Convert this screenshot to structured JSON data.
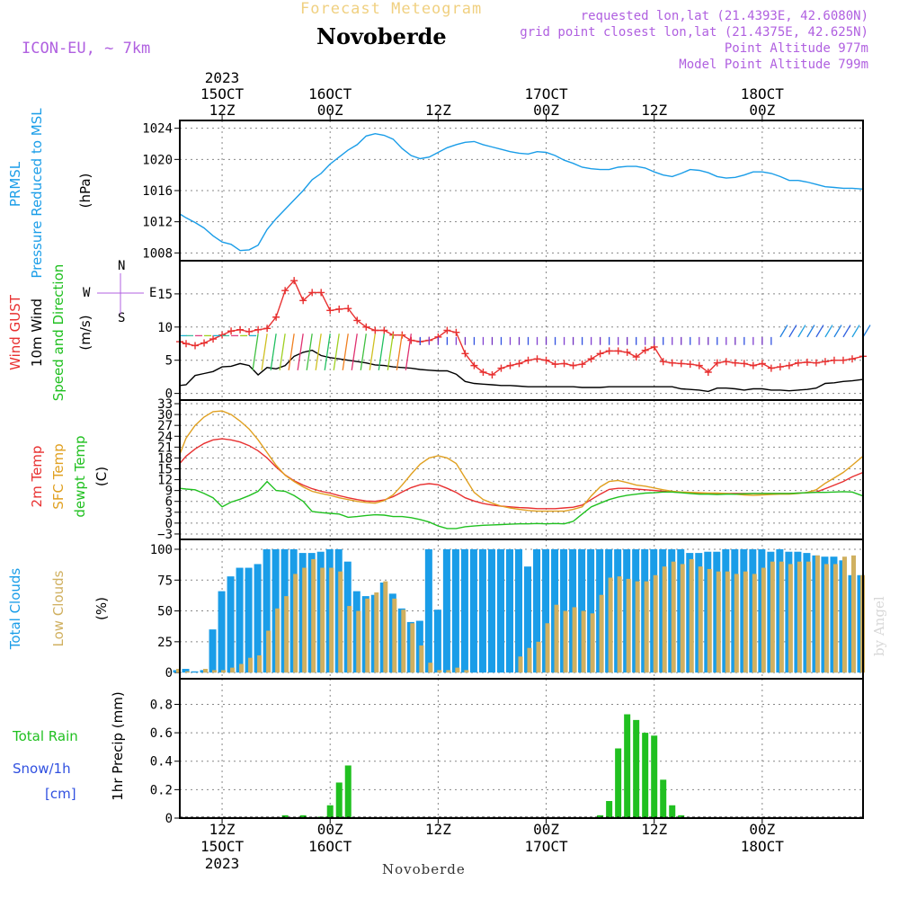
{
  "header": {
    "title": "Forecast Meteogram",
    "station": "Novoberde",
    "model": "ICON-EU, ~ 7km",
    "requested": "requested lon,lat (21.4393E, 42.6080N)",
    "grid_point": "grid point closest lon,lat (21.4375E, 42.625N)",
    "point_altitude": "Point Altitude 977m",
    "model_altitude": "Model Point Altitude 799m"
  },
  "footer": {
    "station": "Novoberde",
    "watermark": "by Angel"
  },
  "colors": {
    "pressure": "#1a9de8",
    "gust": "#e83030",
    "wind": "#000000",
    "temp2m": "#e83030",
    "sfc_temp": "#e0a020",
    "dewpoint": "#20c020",
    "total_clouds": "#1a9de8",
    "low_clouds": "#d0b060",
    "rain": "#20c020",
    "snow": "#3050e0"
  },
  "time_axis": {
    "top": [
      {
        "x": 10,
        "lines": [
          "2023",
          "15OCT",
          "12Z"
        ]
      },
      {
        "x": 22,
        "lines": [
          "16OCT",
          "00Z"
        ]
      },
      {
        "x": 34,
        "lines": [
          "12Z"
        ]
      },
      {
        "x": 46,
        "lines": [
          "17OCT",
          "00Z"
        ]
      },
      {
        "x": 58,
        "lines": [
          "12Z"
        ]
      },
      {
        "x": 70,
        "lines": [
          "18OCT",
          "00Z"
        ]
      }
    ],
    "bottom": [
      {
        "x": 10,
        "lines": [
          "12Z",
          "15OCT",
          "2023"
        ]
      },
      {
        "x": 22,
        "lines": [
          "00Z",
          "16OCT"
        ]
      },
      {
        "x": 34,
        "lines": [
          "12Z"
        ]
      },
      {
        "x": 46,
        "lines": [
          "00Z",
          "17OCT"
        ]
      },
      {
        "x": 58,
        "lines": [
          "12Z"
        ]
      },
      {
        "x": 70,
        "lines": [
          "00Z",
          "18OCT"
        ]
      }
    ],
    "x_range": [
      5.3,
      81.2
    ]
  },
  "panels": {
    "pressure": {
      "labels": [
        "PRMSL",
        "Pressure Reduced to MSL",
        "(hPa)"
      ]
    },
    "wind": {
      "labels": [
        "Wind GUST",
        "10m Wind",
        "Speed and Direction",
        "(m/s)"
      ],
      "compass": "N",
      "compass_s": "S",
      "compass_w": "W",
      "compass_e": "E"
    },
    "temperature": {
      "labels": [
        "2m Temp",
        "SFC Temp",
        "dewpt Temp",
        "(C)"
      ]
    },
    "clouds": {
      "labels": [
        "Total Clouds",
        "Low Clouds",
        "(%)"
      ]
    },
    "precip": {
      "labels": [
        "Total Rain",
        "Snow/1h",
        "[cm]",
        "1hr Precip (mm)"
      ]
    }
  },
  "chart_data": [
    {
      "type": "line",
      "name": "pressure",
      "ylim": [
        1007,
        1025
      ],
      "yticks": [
        1008,
        1012,
        1016,
        1020,
        1024
      ],
      "x": [
        5.3,
        6,
        7,
        8,
        9,
        10,
        11,
        12,
        13,
        14,
        15,
        16,
        17,
        18,
        19,
        20,
        21,
        22,
        23,
        24,
        25,
        26,
        27,
        28,
        29,
        30,
        31,
        32,
        33,
        34,
        35,
        36,
        37,
        38,
        39,
        40,
        41,
        42,
        43,
        44,
        45,
        46,
        47,
        48,
        49,
        50,
        51,
        52,
        53,
        54,
        55,
        56,
        57,
        58,
        59,
        60,
        61,
        62,
        63,
        64,
        65,
        66,
        67,
        68,
        69,
        70,
        71,
        72,
        73,
        74,
        75,
        76,
        77,
        78,
        79,
        80,
        81.2
      ],
      "series": [
        {
          "values": [
            1013.0,
            1012.5,
            1011.9,
            1011.2,
            1010.2,
            1009.4,
            1009.1,
            1008.3,
            1008.4,
            1009.0,
            1011.0,
            1012.4,
            1013.6,
            1014.8,
            1016.0,
            1017.4,
            1018.2,
            1019.4,
            1020.3,
            1021.2,
            1021.9,
            1023.0,
            1023.3,
            1023.1,
            1022.6,
            1021.4,
            1020.5,
            1020.1,
            1020.3,
            1020.9,
            1021.5,
            1021.9,
            1022.2,
            1022.3,
            1021.9,
            1021.6,
            1021.3,
            1021.0,
            1020.8,
            1020.7,
            1021.0,
            1020.9,
            1020.5,
            1019.9,
            1019.5,
            1019.0,
            1018.8,
            1018.7,
            1018.7,
            1019.0,
            1019.1,
            1019.1,
            1018.9,
            1018.4,
            1018.0,
            1017.8,
            1018.2,
            1018.7,
            1018.6,
            1018.3,
            1017.8,
            1017.6,
            1017.7,
            1018.0,
            1018.4,
            1018.4,
            1018.2,
            1017.8,
            1017.3,
            1017.3,
            1017.1,
            1016.8,
            1016.5,
            1016.4,
            1016.3,
            1016.3,
            1016.2
          ]
        }
      ]
    },
    {
      "type": "line",
      "name": "wind",
      "ylim": [
        -1,
        20
      ],
      "yticks": [
        0,
        5,
        10,
        15
      ],
      "x": [
        5.3,
        6,
        7,
        8,
        9,
        10,
        11,
        12,
        13,
        14,
        15,
        16,
        17,
        18,
        19,
        20,
        21,
        22,
        23,
        24,
        25,
        26,
        27,
        28,
        29,
        30,
        31,
        32,
        33,
        34,
        35,
        36,
        37,
        38,
        39,
        40,
        41,
        42,
        43,
        44,
        45,
        46,
        47,
        48,
        49,
        50,
        51,
        52,
        53,
        54,
        55,
        56,
        57,
        58,
        59,
        60,
        61,
        62,
        63,
        64,
        65,
        66,
        67,
        68,
        69,
        70,
        71,
        72,
        73,
        74,
        75,
        76,
        77,
        78,
        79,
        80,
        81.2
      ],
      "series": [
        {
          "name": "gust",
          "values": [
            7.8,
            7.5,
            7.2,
            7.6,
            8.2,
            8.8,
            9.4,
            9.6,
            9.3,
            9.6,
            9.8,
            11.5,
            15.5,
            17.0,
            14.0,
            15.2,
            15.2,
            12.5,
            12.7,
            12.8,
            11.0,
            10.0,
            9.5,
            9.5,
            8.8,
            8.8,
            8.0,
            7.8,
            8.0,
            8.5,
            9.5,
            9.2,
            6.0,
            4.2,
            3.2,
            2.8,
            3.8,
            4.2,
            4.5,
            5.0,
            5.2,
            5.0,
            4.4,
            4.5,
            4.2,
            4.4,
            5.2,
            6.0,
            6.4,
            6.4,
            6.2,
            5.5,
            6.5,
            7.0,
            4.8,
            4.6,
            4.5,
            4.4,
            4.2,
            3.2,
            4.6,
            4.8,
            4.6,
            4.5,
            4.2,
            4.5,
            3.8,
            4.0,
            4.2,
            4.6,
            4.7,
            4.6,
            4.8,
            5.0,
            5.0,
            5.2,
            5.6
          ]
        },
        {
          "name": "wind10m",
          "values": [
            1.2,
            1.3,
            2.7,
            3.0,
            3.3,
            4.0,
            4.1,
            4.5,
            4.2,
            2.8,
            3.9,
            3.7,
            4.2,
            5.6,
            6.2,
            6.5,
            5.7,
            5.4,
            5.2,
            5.0,
            4.8,
            4.6,
            4.3,
            4.2,
            4.0,
            3.9,
            3.8,
            3.6,
            3.5,
            3.4,
            3.4,
            2.9,
            1.8,
            1.5,
            1.4,
            1.3,
            1.2,
            1.2,
            1.1,
            1.0,
            1.0,
            1.0,
            1.0,
            1.0,
            1.0,
            0.9,
            0.9,
            0.9,
            1.0,
            1.0,
            1.0,
            1.0,
            1.0,
            1.0,
            1.0,
            1.0,
            0.7,
            0.6,
            0.5,
            0.3,
            0.8,
            0.8,
            0.7,
            0.5,
            0.7,
            0.7,
            0.5,
            0.5,
            0.4,
            0.5,
            0.6,
            0.8,
            1.5,
            1.6,
            1.8,
            1.9,
            2.1
          ]
        }
      ]
    },
    {
      "type": "line",
      "name": "temperature",
      "ylim": [
        -4.5,
        34
      ],
      "yticks": [
        -3,
        0,
        3,
        6,
        9,
        12,
        15,
        18,
        21,
        24,
        27,
        30,
        33
      ],
      "x": [
        5.3,
        6,
        7,
        8,
        9,
        10,
        11,
        12,
        13,
        14,
        15,
        16,
        17,
        18,
        19,
        20,
        21,
        22,
        23,
        24,
        25,
        26,
        27,
        28,
        29,
        30,
        31,
        32,
        33,
        34,
        35,
        36,
        37,
        38,
        39,
        40,
        41,
        42,
        43,
        44,
        45,
        46,
        47,
        48,
        49,
        50,
        51,
        52,
        53,
        54,
        55,
        56,
        57,
        58,
        59,
        60,
        61,
        62,
        63,
        64,
        65,
        66,
        67,
        68,
        69,
        70,
        71,
        72,
        73,
        74,
        75,
        76,
        77,
        78,
        79,
        80,
        81.2
      ],
      "series": [
        {
          "name": "temp2m",
          "values": [
            16.5,
            18.5,
            20.5,
            22.0,
            23.0,
            23.3,
            23.0,
            22.4,
            21.4,
            20.0,
            18.0,
            15.5,
            13.3,
            11.7,
            10.5,
            9.5,
            8.8,
            8.3,
            7.6,
            7.0,
            6.5,
            6.1,
            6.0,
            6.4,
            7.3,
            8.6,
            9.8,
            10.6,
            10.9,
            10.6,
            9.6,
            8.5,
            7.0,
            6.1,
            5.4,
            5.0,
            4.7,
            4.5,
            4.3,
            4.2,
            4.0,
            4.0,
            4.0,
            4.2,
            4.4,
            5.0,
            6.5,
            8.0,
            9.3,
            9.6,
            9.6,
            9.4,
            9.2,
            9.0,
            8.8,
            8.6,
            8.5,
            8.4,
            8.3,
            8.2,
            8.2,
            8.2,
            8.2,
            8.2,
            8.2,
            8.2,
            8.2,
            8.2,
            8.2,
            8.3,
            8.4,
            8.6,
            9.5,
            10.5,
            11.5,
            12.8,
            14.0
          ]
        },
        {
          "name": "sfc_temp",
          "values": [
            19.0,
            23.5,
            27.0,
            29.3,
            30.8,
            31.0,
            30.0,
            28.2,
            26.0,
            23.0,
            19.5,
            16.0,
            13.2,
            11.5,
            10.0,
            8.8,
            8.2,
            7.7,
            7.0,
            6.5,
            6.0,
            5.7,
            5.5,
            6.2,
            7.8,
            10.5,
            13.5,
            16.3,
            18.0,
            18.6,
            18.0,
            16.5,
            12.5,
            8.5,
            6.5,
            5.5,
            4.7,
            4.2,
            3.8,
            3.5,
            3.3,
            3.3,
            3.3,
            3.3,
            3.8,
            4.5,
            7.5,
            10.0,
            11.5,
            11.8,
            11.2,
            10.5,
            10.2,
            9.7,
            9.2,
            8.8,
            8.6,
            8.5,
            8.4,
            8.3,
            8.3,
            8.2,
            8.0,
            7.8,
            7.7,
            7.8,
            7.9,
            8.0,
            8.0,
            8.2,
            8.5,
            9.2,
            11.0,
            12.5,
            14.0,
            16.0,
            18.5
          ]
        },
        {
          "name": "dewpoint",
          "values": [
            9.6,
            9.4,
            9.2,
            8.2,
            7.0,
            4.5,
            5.8,
            6.6,
            7.6,
            8.8,
            11.5,
            9.0,
            8.8,
            7.6,
            6.0,
            3.2,
            2.9,
            2.7,
            2.5,
            1.6,
            1.8,
            2.1,
            2.3,
            2.2,
            1.8,
            1.8,
            1.5,
            1.0,
            0.3,
            -0.8,
            -1.5,
            -1.5,
            -1.0,
            -0.8,
            -0.6,
            -0.5,
            -0.4,
            -0.3,
            -0.2,
            -0.2,
            -0.1,
            -0.2,
            -0.1,
            -0.2,
            0.5,
            2.5,
            4.5,
            5.5,
            6.5,
            7.2,
            7.7,
            8.0,
            8.3,
            8.4,
            8.6,
            8.6,
            8.4,
            8.2,
            8.0,
            8.0,
            7.9,
            8.0,
            8.0,
            8.1,
            8.2,
            8.2,
            8.2,
            8.2,
            8.2,
            8.3,
            8.4,
            8.5,
            8.5,
            8.6,
            8.7,
            8.6,
            7.5
          ]
        }
      ]
    },
    {
      "type": "bar",
      "name": "clouds",
      "ylim": [
        -5,
        108
      ],
      "yticks": [
        0,
        25,
        50,
        75,
        100
      ],
      "x": [
        5,
        6,
        7,
        8,
        9,
        10,
        11,
        12,
        13,
        14,
        15,
        16,
        17,
        18,
        19,
        20,
        21,
        22,
        23,
        24,
        25,
        26,
        27,
        28,
        29,
        30,
        31,
        32,
        33,
        34,
        35,
        36,
        37,
        38,
        39,
        40,
        41,
        42,
        43,
        44,
        45,
        46,
        47,
        48,
        49,
        50,
        51,
        52,
        53,
        54,
        55,
        56,
        57,
        58,
        59,
        60,
        61,
        62,
        63,
        64,
        65,
        66,
        67,
        68,
        69,
        70,
        71,
        72,
        73,
        74,
        75,
        76,
        77,
        78,
        79,
        80,
        81
      ],
      "series": [
        {
          "name": "total_clouds",
          "values": [
            2,
            3,
            1,
            2,
            35,
            66,
            78,
            85,
            85,
            88,
            100,
            100,
            100,
            100,
            97,
            97,
            98,
            100,
            100,
            90,
            66,
            62,
            63,
            73,
            64,
            52,
            41,
            42,
            100,
            51,
            100,
            100,
            100,
            100,
            100,
            100,
            100,
            100,
            100,
            86,
            100,
            100,
            100,
            100,
            100,
            100,
            100,
            100,
            100,
            100,
            100,
            100,
            100,
            100,
            100,
            100,
            100,
            97,
            97,
            98,
            98,
            100,
            100,
            100,
            100,
            100,
            98,
            100,
            98,
            98,
            97,
            95,
            94,
            94,
            91,
            79,
            79
          ]
        },
        {
          "name": "low_clouds",
          "values": [
            3,
            1,
            0,
            3,
            2,
            2,
            4,
            7,
            12,
            14,
            34,
            52,
            62,
            80,
            85,
            92,
            85,
            85,
            82,
            54,
            50,
            60,
            65,
            74,
            60,
            51,
            40,
            22,
            8,
            2,
            2,
            4,
            2,
            0,
            0,
            0,
            0,
            0,
            13,
            20,
            25,
            40,
            55,
            50,
            53,
            50,
            48,
            63,
            77,
            78,
            76,
            74,
            74,
            79,
            86,
            90,
            88,
            92,
            86,
            84,
            82,
            82,
            80,
            82,
            80,
            85,
            90,
            90,
            88,
            90,
            90,
            95,
            88,
            88,
            94,
            95,
            79
          ]
        }
      ]
    },
    {
      "type": "bar",
      "name": "precip",
      "ylim": [
        0,
        0.98
      ],
      "yticks": [
        0,
        0.2,
        0.4,
        0.6,
        0.8
      ],
      "x": [
        17,
        19,
        21,
        22,
        23,
        24,
        52,
        53,
        54,
        55,
        56,
        57,
        58,
        59,
        60,
        61,
        62,
        63
      ],
      "series": [
        {
          "name": "rain",
          "values": [
            0.02,
            0.02,
            0.01,
            0.09,
            0.25,
            0.37,
            0.02,
            0.12,
            0.49,
            0.73,
            0.69,
            0.6,
            0.58,
            0.27,
            0.09,
            0.02,
            0.0,
            0.0
          ]
        }
      ]
    }
  ]
}
